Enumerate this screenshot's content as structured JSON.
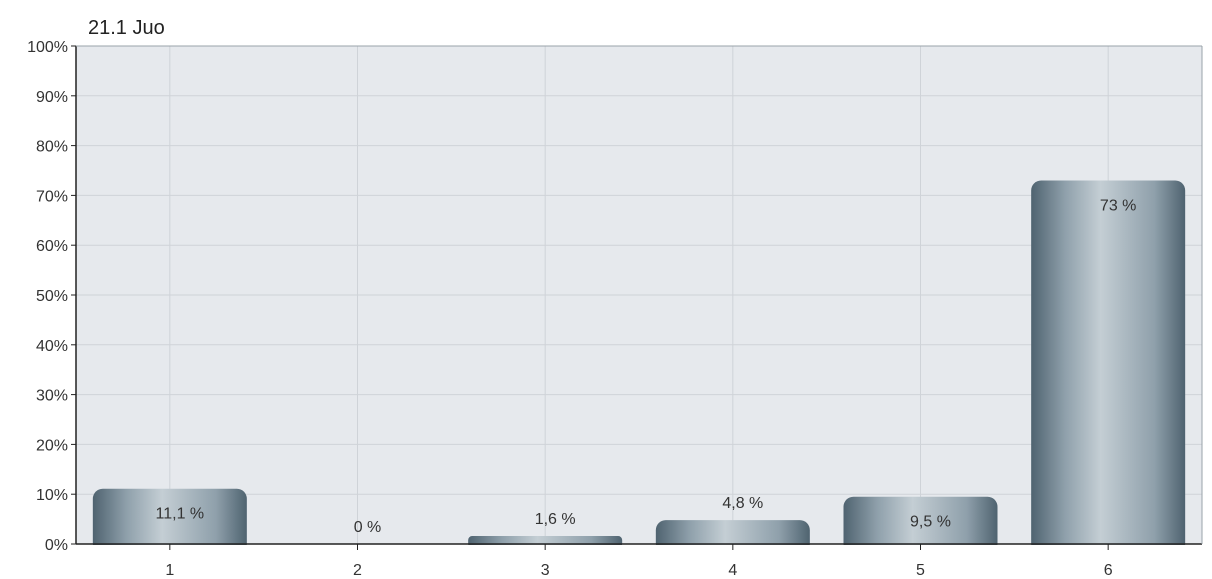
{
  "chart_data": {
    "type": "bar",
    "title": "21.1 Juo",
    "categories": [
      "1",
      "2",
      "3",
      "4",
      "5",
      "6"
    ],
    "values": [
      11.1,
      0,
      1.6,
      4.8,
      9.5,
      73
    ],
    "data_labels": [
      "11,1 %",
      "0 %",
      "1,6 %",
      "4,8 %",
      "9,5 %",
      "73 %"
    ],
    "ylim": [
      0,
      100
    ],
    "yticks": [
      0,
      10,
      20,
      30,
      40,
      50,
      60,
      70,
      80,
      90,
      100
    ],
    "ytick_labels": [
      "0%",
      "10%",
      "20%",
      "30%",
      "40%",
      "50%",
      "60%",
      "70%",
      "80%",
      "90%",
      "100%"
    ],
    "xlabel": "",
    "ylabel": "",
    "grid": true,
    "legend": "none",
    "colors": {
      "plot_background": "#e6e9ed",
      "grid": "#cfd3d8",
      "axis": "#222222",
      "bar_dark": "#4f6370",
      "bar_mid": "#8fa0ab",
      "bar_light": "#c4ced4"
    }
  }
}
